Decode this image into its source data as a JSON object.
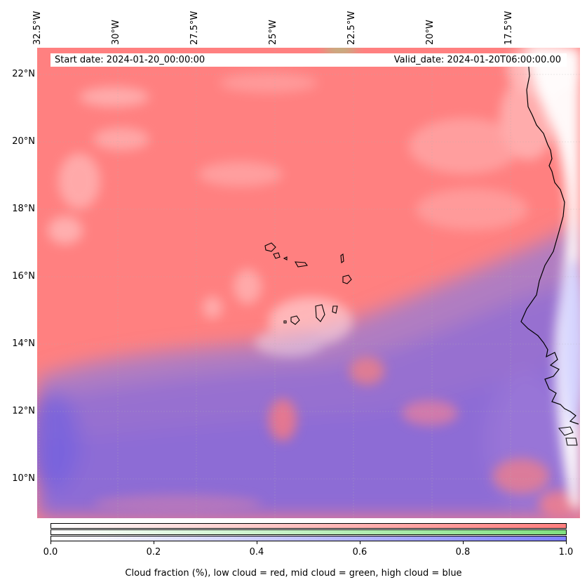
{
  "map": {
    "lon_labels": [
      "32.5°W",
      "30°W",
      "27.5°W",
      "25°W",
      "22.5°W",
      "20°W",
      "17.5°W"
    ],
    "lat_labels": [
      "22°N",
      "20°N",
      "18°N",
      "16°N",
      "14°N",
      "12°N",
      "10°N"
    ],
    "start_date": "Start date: 2024-01-20_00:00:00",
    "valid_date": "Valid_date: 2024-01-20T06:00:00.00"
  },
  "legend": {
    "ticks": [
      "0.0",
      "0.2",
      "0.4",
      "0.6",
      "0.8",
      "1.0"
    ],
    "label": "Cloud fraction (%), low cloud = red, mid cloud = green, high cloud = blue",
    "colors": {
      "low": "#ff7f7f",
      "mid": "#80e080",
      "high": "#7f7fff",
      "coast": "#000000"
    }
  }
}
